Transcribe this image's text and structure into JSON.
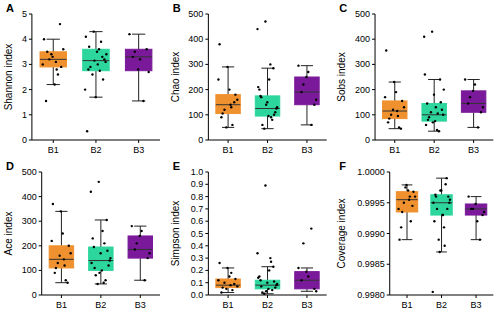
{
  "chart_data": [
    {
      "type": "box",
      "title": "A",
      "y_label": "Shannon index",
      "categories": [
        "B1",
        "B2",
        "B3"
      ],
      "colors": [
        "#f0912f",
        "#2cd69c",
        "#7a1a9a"
      ],
      "ylim": [
        0,
        5
      ],
      "yticks": [
        0,
        1,
        2,
        3,
        4,
        5
      ],
      "boxes": [
        {
          "low": 2.2,
          "q1": 2.9,
          "median": 3.2,
          "q3": 3.5,
          "high": 4.0
        },
        {
          "low": 1.7,
          "q1": 2.75,
          "median": 3.15,
          "q3": 3.6,
          "high": 4.3
        },
        {
          "low": 1.55,
          "q1": 2.75,
          "median": 3.3,
          "q3": 3.6,
          "high": 4.2
        }
      ],
      "points": [
        [
          3.1,
          3.5,
          2.9,
          3.3,
          4.0,
          2.6,
          3.2,
          3.6,
          2.2,
          1.55,
          4.6,
          3.4,
          3.0,
          2.8
        ],
        [
          3.1,
          3.5,
          2.8,
          3.3,
          4.3,
          2.0,
          3.6,
          2.9,
          3.2,
          1.7,
          0.35,
          3.9,
          2.6,
          3.4,
          3.0,
          3.7,
          2.4,
          3.15,
          4.1,
          2.75
        ],
        [
          3.3,
          3.6,
          2.8,
          4.2,
          1.55,
          3.5,
          2.7,
          3.2
        ]
      ]
    },
    {
      "type": "box",
      "title": "B",
      "y_label": "Chao index",
      "categories": [
        "B1",
        "B2",
        "B3"
      ],
      "colors": [
        "#f0912f",
        "#2cd69c",
        "#7a1a9a"
      ],
      "ylim": [
        0,
        500
      ],
      "yticks": [
        0,
        100,
        200,
        300,
        400,
        500
      ],
      "boxes": [
        {
          "low": 50,
          "q1": 105,
          "median": 140,
          "q3": 180,
          "high": 290
        },
        {
          "low": 45,
          "q1": 95,
          "median": 125,
          "q3": 175,
          "high": 285
        },
        {
          "low": 60,
          "q1": 140,
          "median": 190,
          "q3": 250,
          "high": 295
        }
      ],
      "points": [
        [
          140,
          105,
          180,
          290,
          380,
          60,
          120,
          160,
          200,
          90,
          150,
          50,
          240,
          130
        ],
        [
          125,
          95,
          175,
          285,
          470,
          440,
          300,
          60,
          110,
          150,
          200,
          80,
          45,
          130,
          240,
          170,
          100,
          140,
          210,
          90
        ],
        [
          190,
          140,
          250,
          295,
          60,
          220,
          160,
          270
        ]
      ]
    },
    {
      "type": "box",
      "title": "C",
      "y_label": "Sobs index",
      "categories": [
        "B1",
        "B2",
        "B3"
      ],
      "colors": [
        "#f0912f",
        "#2cd69c",
        "#7a1a9a"
      ],
      "ylim": [
        0,
        500
      ],
      "yticks": [
        0,
        100,
        200,
        300,
        400,
        500
      ],
      "boxes": [
        {
          "low": 45,
          "q1": 85,
          "median": 115,
          "q3": 155,
          "high": 230
        },
        {
          "low": 35,
          "q1": 75,
          "median": 100,
          "q3": 145,
          "high": 240
        },
        {
          "low": 50,
          "q1": 110,
          "median": 145,
          "q3": 195,
          "high": 240
        }
      ],
      "points": [
        [
          115,
          85,
          155,
          230,
          355,
          50,
          100,
          130,
          190,
          70,
          45,
          120,
          170,
          95
        ],
        [
          100,
          75,
          145,
          240,
          430,
          410,
          40,
          90,
          120,
          180,
          60,
          35,
          110,
          200,
          130,
          80,
          150,
          70,
          260,
          105
        ],
        [
          145,
          110,
          195,
          240,
          50,
          170,
          130,
          220
        ]
      ]
    },
    {
      "type": "box",
      "title": "D",
      "y_label": "Ace index",
      "categories": [
        "B1",
        "B2",
        "B3"
      ],
      "colors": [
        "#f0912f",
        "#2cd69c",
        "#7a1a9a"
      ],
      "ylim": [
        0,
        500
      ],
      "yticks": [
        0,
        100,
        200,
        300,
        400,
        500
      ],
      "boxes": [
        {
          "low": 50,
          "q1": 110,
          "median": 145,
          "q3": 200,
          "high": 340
        },
        {
          "low": 45,
          "q1": 100,
          "median": 140,
          "q3": 195,
          "high": 305
        },
        {
          "low": 60,
          "q1": 150,
          "median": 185,
          "q3": 240,
          "high": 280
        }
      ],
      "points": [
        [
          145,
          110,
          200,
          340,
          370,
          60,
          130,
          170,
          250,
          90,
          50,
          160,
          220,
          120
        ],
        [
          140,
          100,
          195,
          305,
          460,
          420,
          50,
          80,
          120,
          170,
          230,
          60,
          45,
          150,
          260,
          110,
          180,
          90,
          130,
          210
        ],
        [
          185,
          150,
          240,
          280,
          60,
          210,
          170,
          260
        ]
      ]
    },
    {
      "type": "box",
      "title": "E",
      "y_label": "Simpson index",
      "categories": [
        "B1",
        "B2",
        "B3"
      ],
      "colors": [
        "#f0912f",
        "#2cd69c",
        "#7a1a9a"
      ],
      "ylim": [
        0,
        1
      ],
      "yticks": [
        {
          "value": 0,
          "label": "0.0"
        },
        0.1,
        0.2,
        0.3,
        0.4,
        0.5,
        0.6,
        0.7,
        0.8,
        0.9,
        {
          "value": 1,
          "label": "1.0"
        }
      ],
      "boxes": [
        {
          "low": 0.02,
          "q1": 0.06,
          "median": 0.08,
          "q3": 0.13,
          "high": 0.22
        },
        {
          "low": 0.01,
          "q1": 0.05,
          "median": 0.08,
          "q3": 0.12,
          "high": 0.23
        },
        {
          "low": 0.03,
          "q1": 0.05,
          "median": 0.12,
          "q3": 0.19,
          "high": 0.22
        }
      ],
      "points": [
        [
          0.08,
          0.06,
          0.13,
          0.22,
          0.26,
          0.04,
          0.1,
          0.07,
          0.15,
          0.02,
          0.09,
          0.05,
          0.12,
          0.18
        ],
        [
          0.08,
          0.05,
          0.12,
          0.23,
          0.89,
          0.34,
          0.3,
          0.02,
          0.06,
          0.1,
          0.15,
          0.04,
          0.01,
          0.09,
          0.2,
          0.07,
          0.11,
          0.03,
          0.14,
          0.27
        ],
        [
          0.12,
          0.05,
          0.19,
          0.22,
          0.54,
          0.42,
          0.03,
          0.15
        ]
      ]
    },
    {
      "type": "box",
      "title": "F",
      "y_label": "Coverage index",
      "categories": [
        "B1",
        "B2",
        "B3"
      ],
      "colors": [
        "#f0912f",
        "#2cd69c",
        "#7a1a9a"
      ],
      "ylim": [
        0.998,
        1
      ],
      "yticks": [
        {
          "value": 0.998,
          "label": "0.9980"
        },
        0.9985,
        {
          "value": 0.999,
          "label": "0.9990"
        },
        0.9995,
        {
          "value": 1,
          "label": "1.0000"
        }
      ],
      "boxes": [
        {
          "low": 0.9989,
          "q1": 0.99935,
          "median": 0.99955,
          "q3": 0.99968,
          "high": 0.99979
        },
        {
          "low": 0.9987,
          "q1": 0.9993,
          "median": 0.9995,
          "q3": 0.99963,
          "high": 0.9999
        },
        {
          "low": 0.9989,
          "q1": 0.9993,
          "median": 0.9994,
          "q3": 0.99948,
          "high": 0.9996
        }
      ],
      "points": [
        [
          0.99955,
          0.99935,
          0.99968,
          0.99979,
          0.9989,
          0.9992,
          0.9995,
          0.9996,
          0.9997,
          0.9991,
          0.99945,
          0.99975,
          0.9994,
          0.9996
        ],
        [
          0.9995,
          0.9993,
          0.99963,
          0.9999,
          0.9987,
          0.99805,
          0.9991,
          0.9994,
          0.9996,
          0.9997,
          0.9992,
          0.9998,
          0.9989,
          0.99955,
          0.9993,
          0.9996,
          0.9994,
          0.9997,
          0.9995,
          0.9988
        ],
        [
          0.9994,
          0.9993,
          0.99948,
          0.9996,
          0.9989,
          0.9994,
          0.99935,
          0.9992
        ]
      ]
    }
  ]
}
